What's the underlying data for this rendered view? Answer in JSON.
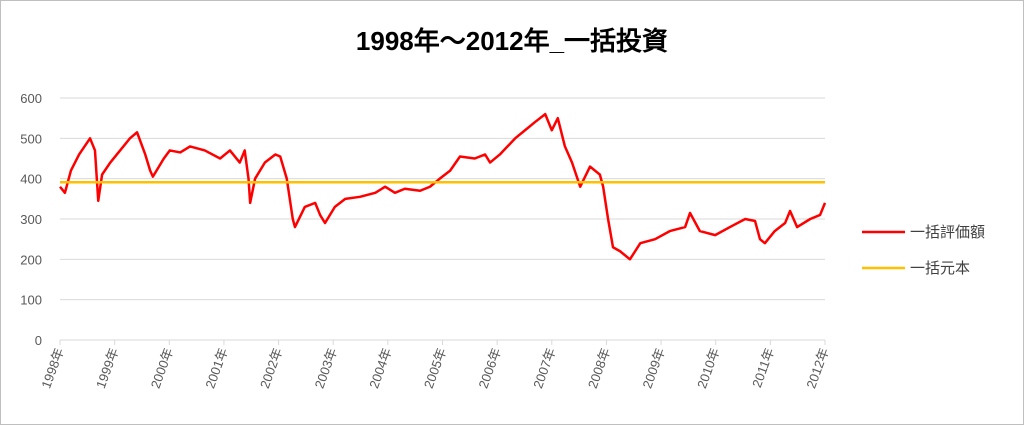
{
  "chart_data": {
    "type": "line",
    "title": "1998年～2012年_一括投資",
    "xlim": [
      1998,
      2012
    ],
    "xticks": [
      {
        "value": 1998,
        "label": "1998年"
      },
      {
        "value": 1999,
        "label": "1999年"
      },
      {
        "value": 2000,
        "label": "2000年"
      },
      {
        "value": 2001,
        "label": "2001年"
      },
      {
        "value": 2002,
        "label": "2002年"
      },
      {
        "value": 2003,
        "label": "2003年"
      },
      {
        "value": 2004,
        "label": "2004年"
      },
      {
        "value": 2005,
        "label": "2005年"
      },
      {
        "value": 2006,
        "label": "2006年"
      },
      {
        "value": 2007,
        "label": "2007年"
      },
      {
        "value": 2008,
        "label": "2008年"
      },
      {
        "value": 2009,
        "label": "2009年"
      },
      {
        "value": 2010,
        "label": "2010年"
      },
      {
        "value": 2011,
        "label": "2011年"
      },
      {
        "value": 2012,
        "label": "2012年"
      }
    ],
    "ylim": [
      0,
      600
    ],
    "yticks": [
      0,
      100,
      200,
      300,
      400,
      500,
      600
    ],
    "grid": true,
    "legend": "right",
    "series": [
      {
        "name": "一括評価額",
        "color": "#ff0000",
        "x": [
          1998.0,
          1998.09,
          1998.2,
          1998.35,
          1998.55,
          1998.64,
          1998.7,
          1998.77,
          1998.92,
          1999.1,
          1999.28,
          1999.41,
          1999.56,
          1999.65,
          1999.7,
          1999.9,
          2000.01,
          2000.2,
          2000.38,
          2000.65,
          2000.93,
          2001.11,
          2001.29,
          2001.38,
          2001.45,
          2001.48,
          2001.57,
          2001.75,
          2001.94,
          2002.03,
          2002.15,
          2002.26,
          2002.3,
          2002.48,
          2002.67,
          2002.76,
          2002.85,
          2003.03,
          2003.22,
          2003.49,
          2003.77,
          2003.95,
          2004.13,
          2004.31,
          2004.59,
          2004.77,
          2004.95,
          2005.14,
          2005.32,
          2005.59,
          2005.78,
          2005.87,
          2006.05,
          2006.33,
          2006.51,
          2006.69,
          2006.88,
          2007.0,
          2007.11,
          2007.24,
          2007.37,
          2007.52,
          2007.7,
          2007.88,
          2007.94,
          2008.03,
          2008.12,
          2008.25,
          2008.43,
          2008.62,
          2008.89,
          2009.16,
          2009.44,
          2009.53,
          2009.71,
          2009.99,
          2010.26,
          2010.54,
          2010.72,
          2010.81,
          2010.9,
          2011.08,
          2011.27,
          2011.36,
          2011.49,
          2011.73,
          2011.91,
          2012.0
        ],
        "values": [
          380,
          365,
          420,
          460,
          500,
          470,
          345,
          410,
          440,
          470,
          500,
          515,
          460,
          420,
          405,
          450,
          470,
          465,
          480,
          470,
          450,
          470,
          440,
          470,
          400,
          340,
          400,
          440,
          460,
          455,
          400,
          300,
          280,
          330,
          340,
          310,
          290,
          330,
          350,
          355,
          365,
          380,
          365,
          375,
          370,
          380,
          400,
          420,
          455,
          450,
          460,
          440,
          460,
          500,
          520,
          540,
          560,
          520,
          550,
          480,
          440,
          380,
          430,
          410,
          380,
          300,
          230,
          220,
          200,
          240,
          250,
          270,
          280,
          315,
          270,
          260,
          280,
          300,
          295,
          250,
          240,
          270,
          290,
          320,
          280,
          300,
          310,
          340
        ]
      },
      {
        "name": "一括元本",
        "color": "#ffc000",
        "x": [
          1998,
          2012
        ],
        "values": [
          391,
          391
        ]
      }
    ]
  }
}
